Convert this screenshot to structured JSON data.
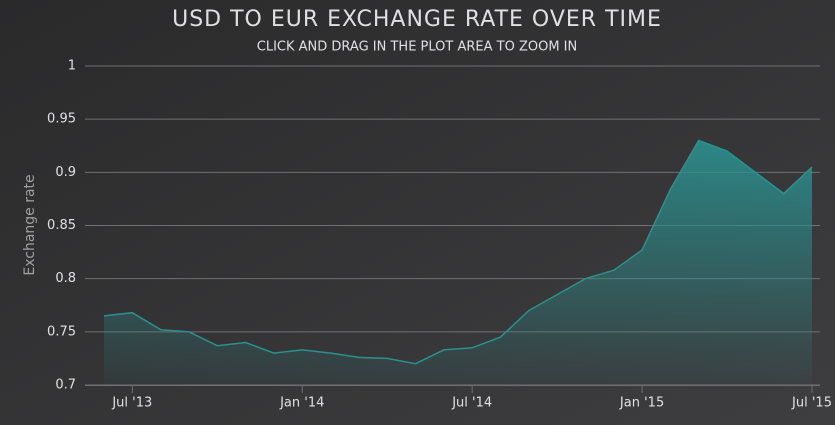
{
  "chart_data": {
    "type": "area",
    "title": "USD TO EUR EXCHANGE RATE OVER TIME",
    "subtitle": "CLICK AND DRAG IN THE PLOT AREA TO ZOOM IN",
    "y_axis_label": "Exchange rate",
    "color": "#2b908f",
    "x": [
      "2013-06",
      "2013-07",
      "2013-08",
      "2013-09",
      "2013-10",
      "2013-11",
      "2013-12",
      "2014-01",
      "2014-02",
      "2014-03",
      "2014-04",
      "2014-05",
      "2014-06",
      "2014-07",
      "2014-08",
      "2014-09",
      "2014-10",
      "2014-11",
      "2014-12",
      "2015-01",
      "2015-02",
      "2015-03",
      "2015-04",
      "2015-05",
      "2015-06",
      "2015-07"
    ],
    "values": [
      0.765,
      0.768,
      0.752,
      0.75,
      0.737,
      0.74,
      0.73,
      0.733,
      0.73,
      0.726,
      0.725,
      0.72,
      0.733,
      0.735,
      0.745,
      0.77,
      0.785,
      0.8,
      0.808,
      0.827,
      0.884,
      0.93,
      0.92,
      0.9,
      0.88,
      0.905
    ],
    "xlim": [
      "2013-06",
      "2015-07"
    ],
    "xticks": [
      {
        "value": "2013-07",
        "label": "Jul '13"
      },
      {
        "value": "2014-01",
        "label": "Jan '14"
      },
      {
        "value": "2014-07",
        "label": "Jul '14"
      },
      {
        "value": "2015-01",
        "label": "Jan '15"
      },
      {
        "value": "2015-07",
        "label": "Jul '15"
      }
    ],
    "ylim": [
      0.7,
      1
    ],
    "yticks": [
      0.7,
      0.75,
      0.8,
      0.85,
      0.9,
      0.95,
      1
    ],
    "grid": true
  }
}
